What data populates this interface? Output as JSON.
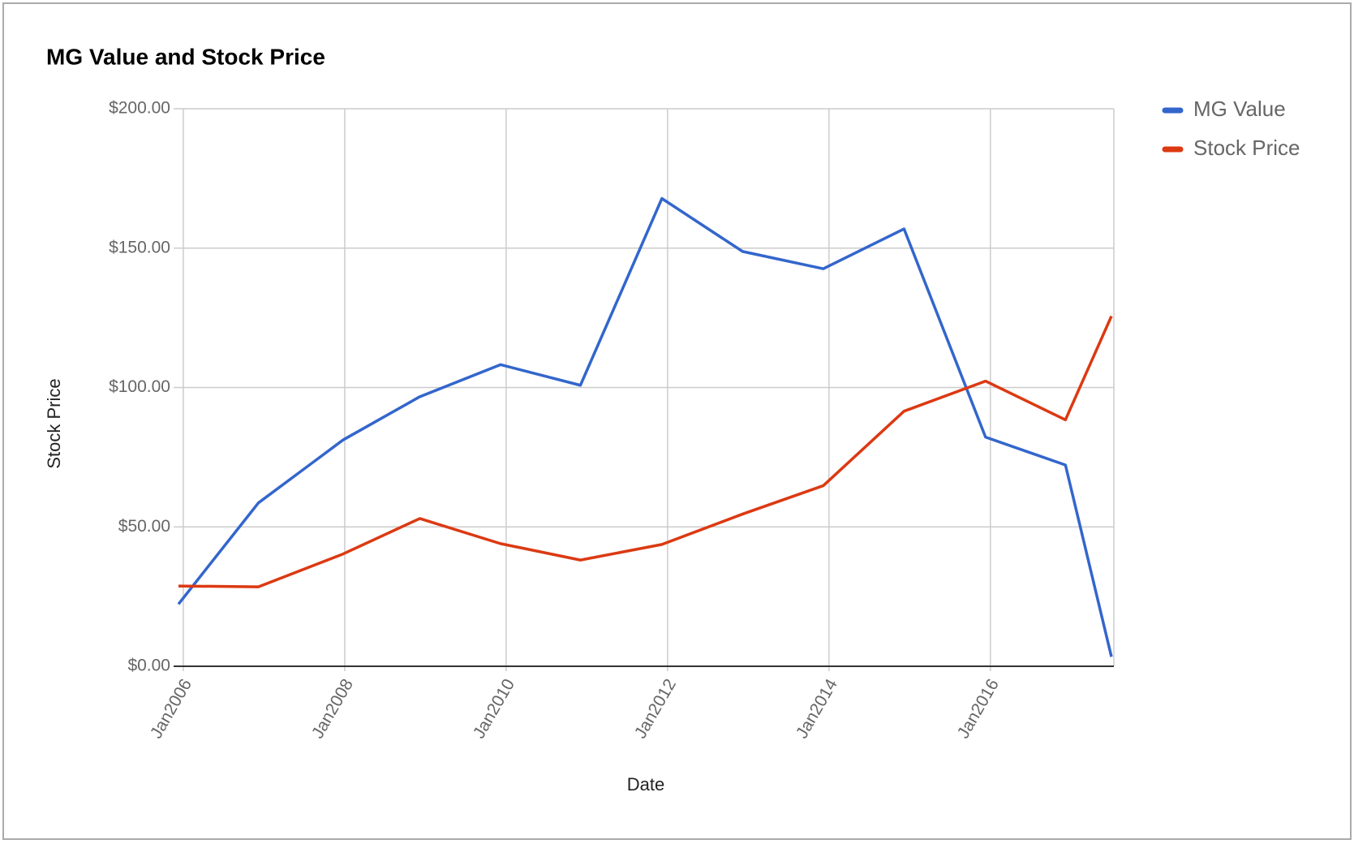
{
  "chart_data": {
    "type": "line",
    "title": "MG Value and Stock Price",
    "x_label": "Date",
    "y_label": "Stock Price",
    "x": [
      2005.94,
      2006.93,
      2007.98,
      2008.93,
      2009.93,
      2010.92,
      2011.93,
      2012.93,
      2013.93,
      2014.93,
      2015.94,
      2016.93,
      2017.5
    ],
    "series": [
      {
        "name": "MG Value",
        "color": "#3366cc",
        "values": [
          22.3,
          58.6,
          81.2,
          96.7,
          108.2,
          100.8,
          167.8,
          148.8,
          142.6,
          156.9,
          82.2,
          72.2,
          3.4
        ]
      },
      {
        "name": "Stock Price",
        "color": "#dc3912",
        "values": [
          28.8,
          28.5,
          40.3,
          53.0,
          44.0,
          38.1,
          43.7,
          54.6,
          64.8,
          91.5,
          102.3,
          88.4,
          125.6
        ]
      }
    ],
    "xlim": [
      2005.94,
      2017.53
    ],
    "xticks": [
      {
        "value": 2006,
        "label": "Jan2006"
      },
      {
        "value": 2008,
        "label": "Jan2008"
      },
      {
        "value": 2010,
        "label": "Jan2010"
      },
      {
        "value": 2012,
        "label": "Jan2012"
      },
      {
        "value": 2014,
        "label": "Jan2014"
      },
      {
        "value": 2016,
        "label": "Jan2016"
      }
    ],
    "ylim": [
      0,
      200
    ],
    "yticks": [
      {
        "value": 0,
        "label": "$0.00"
      },
      {
        "value": 50,
        "label": "$50.00"
      },
      {
        "value": 100,
        "label": "$100.00"
      },
      {
        "value": 150,
        "label": "$150.00"
      },
      {
        "value": 200,
        "label": "$200.00"
      }
    ],
    "grid": true,
    "legend": "right"
  }
}
